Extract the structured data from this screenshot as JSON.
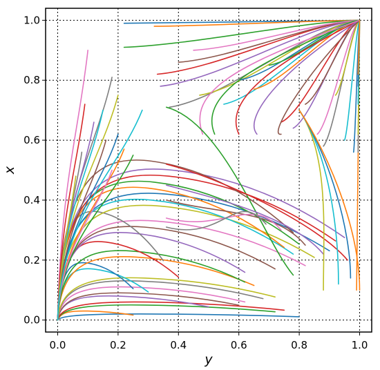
{
  "chart_data": {
    "type": "line",
    "xlabel": "y",
    "ylabel": "x",
    "xlim": [
      -0.04,
      1.04
    ],
    "ylim": [
      -0.04,
      1.04
    ],
    "xticks": [
      0.0,
      0.2,
      0.4,
      0.6,
      0.8,
      1.0
    ],
    "yticks": [
      0.0,
      0.2,
      0.4,
      0.6,
      0.8,
      1.0
    ],
    "xtick_labels": [
      "0.0",
      "0.2",
      "0.4",
      "0.6",
      "0.8",
      "1.0"
    ],
    "ytick_labels": [
      "0.0",
      "0.2",
      "0.4",
      "0.6",
      "0.8",
      "1.0"
    ],
    "grid": true,
    "colors": [
      "#1f77b4",
      "#ff7f0e",
      "#2ca02c",
      "#d62728",
      "#9467bd",
      "#8c564b",
      "#e377c2",
      "#7f7f7f",
      "#bcbd22",
      "#17becf"
    ],
    "lower_arcs": [
      {
        "peak": 0.02,
        "end": 0.8
      },
      {
        "peak": 0.03,
        "end": 0.25
      },
      {
        "peak": 0.05,
        "end": 0.72
      },
      {
        "peak": 0.06,
        "end": 0.75
      },
      {
        "peak": 0.08,
        "end": 0.5
      },
      {
        "peak": 0.09,
        "end": 0.6
      },
      {
        "peak": 0.11,
        "end": 0.62
      },
      {
        "peak": 0.13,
        "end": 0.68
      },
      {
        "peak": 0.14,
        "end": 0.72
      },
      {
        "peak": 0.17,
        "end": 0.3
      },
      {
        "peak": 0.19,
        "end": 0.25
      },
      {
        "peak": 0.21,
        "end": 0.65
      },
      {
        "peak": 0.23,
        "end": 0.62
      },
      {
        "peak": 0.26,
        "end": 0.4
      },
      {
        "peak": 0.29,
        "end": 0.62
      },
      {
        "peak": 0.31,
        "end": 0.72
      },
      {
        "peak": 0.33,
        "end": 0.82
      },
      {
        "peak": 0.36,
        "end": 0.35
      },
      {
        "peak": 0.38,
        "end": 0.85
      },
      {
        "peak": 0.4,
        "end": 0.78
      },
      {
        "peak": 0.42,
        "end": 0.9
      },
      {
        "peak": 0.44,
        "end": 0.75
      },
      {
        "peak": 0.46,
        "end": 0.8
      },
      {
        "peak": 0.48,
        "end": 0.92
      },
      {
        "peak": 0.5,
        "end": 0.95
      },
      {
        "peak": 0.53,
        "end": 0.78
      }
    ],
    "left_curves": [
      {
        "top_x": 0.1,
        "top_y": 0.9
      },
      {
        "top_x": 0.18,
        "top_y": 0.81
      },
      {
        "top_x": 0.2,
        "top_y": 0.75
      },
      {
        "top_x": 0.15,
        "top_y": 0.7
      },
      {
        "top_x": 0.2,
        "top_y": 0.62
      },
      {
        "top_x": 0.22,
        "top_y": 0.57
      },
      {
        "top_x": 0.25,
        "top_y": 0.55
      },
      {
        "top_x": 0.09,
        "top_y": 0.72
      },
      {
        "top_x": 0.12,
        "top_y": 0.66
      },
      {
        "top_x": 0.16,
        "top_y": 0.6
      },
      {
        "top_x": 0.18,
        "top_y": 0.5
      },
      {
        "top_x": 0.08,
        "top_y": 0.56
      },
      {
        "top_x": 0.06,
        "top_y": 0.48
      },
      {
        "top_x": 0.28,
        "top_y": 0.7
      }
    ],
    "upper_flows": [
      {
        "sy": 0.22,
        "sx": 0.99
      },
      {
        "sy": 0.32,
        "sx": 0.98
      },
      {
        "sy": 0.22,
        "sx": 0.91
      },
      {
        "sy": 0.33,
        "sx": 0.82
      },
      {
        "sy": 0.34,
        "sx": 0.78
      },
      {
        "sy": 0.4,
        "sx": 0.86
      },
      {
        "sy": 0.45,
        "sx": 0.9
      },
      {
        "sy": 0.37,
        "sx": 0.71
      },
      {
        "sy": 0.47,
        "sx": 0.75
      },
      {
        "sy": 0.55,
        "sx": 0.72
      },
      {
        "sy": 0.6,
        "sx": 0.8
      },
      {
        "sy": 0.65,
        "sx": 0.77
      },
      {
        "sy": 0.7,
        "sx": 0.85
      },
      {
        "sy": 0.74,
        "sx": 0.66
      },
      {
        "sy": 0.78,
        "sx": 0.64
      },
      {
        "sy": 0.82,
        "sx": 0.72
      },
      {
        "sy": 0.86,
        "sx": 0.62
      },
      {
        "sy": 0.88,
        "sx": 0.58
      },
      {
        "sy": 0.92,
        "sx": 0.75
      },
      {
        "sy": 0.95,
        "sx": 0.6
      },
      {
        "sy": 0.98,
        "sx": 0.56
      },
      {
        "sy": 0.99,
        "sx": 0.1
      }
    ],
    "right_flows": [
      {
        "sx": 0.71,
        "ex": 0.78,
        "ey": 0.15
      },
      {
        "sx": 0.52,
        "ex": 0.96,
        "ey": 0.2
      },
      {
        "sx": 0.45,
        "ex": 0.88,
        "ey": 0.22
      },
      {
        "sx": 0.4,
        "ex": 0.82,
        "ey": 0.25
      },
      {
        "sx": 0.34,
        "ex": 0.74,
        "ey": 0.3
      },
      {
        "sx": 0.31,
        "ex": 0.69,
        "ey": 0.32
      }
    ]
  }
}
